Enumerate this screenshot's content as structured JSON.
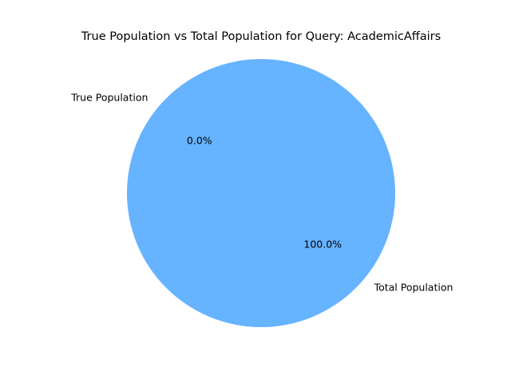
{
  "chart_data": {
    "type": "pie",
    "title": "True Population vs Total Population for Query: AcademicAffairs",
    "slices": [
      {
        "label": "True Population",
        "value": 0,
        "percent_label": "0.0%",
        "color": "#ff9999"
      },
      {
        "label": "Total Population",
        "value": 100,
        "percent_label": "100.0%",
        "color": "#66b3ff"
      }
    ],
    "start_angle_deg": 140,
    "legend": "none"
  }
}
